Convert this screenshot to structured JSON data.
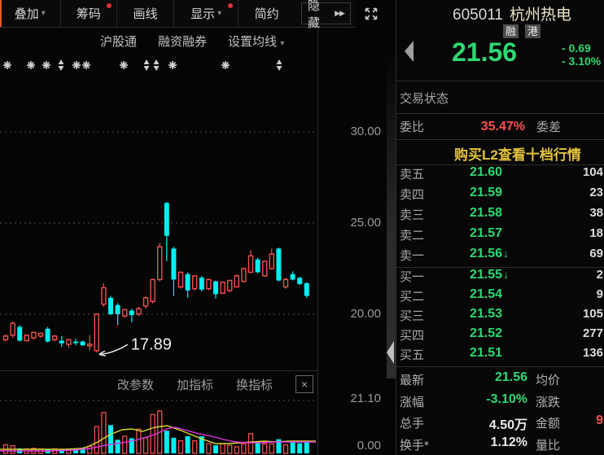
{
  "toolbar": {
    "buttons": [
      {
        "label": "叠加",
        "caret": true,
        "dot": false
      },
      {
        "label": "筹码",
        "caret": false,
        "dot": true
      },
      {
        "label": "画线",
        "caret": false,
        "dot": false
      },
      {
        "label": "显示",
        "caret": true,
        "dot": true
      },
      {
        "label": "简约",
        "caret": false,
        "dot": false
      },
      {
        "label": "隐藏",
        "caret": false,
        "dot": false,
        "chevrons": "▶▶"
      }
    ]
  },
  "subnav": {
    "items": [
      "沪股通",
      "融资融券",
      "设置均线"
    ]
  },
  "indicator_bar": {
    "items": [
      "改参数",
      "加指标",
      "换指标"
    ],
    "close_label": "×"
  },
  "quote_panel": {
    "code": "605011",
    "name": "杭州热电",
    "badges": [
      "融",
      "港"
    ],
    "price": "21.56",
    "change": "- 0.69",
    "change_pct": "- 3.10%",
    "status_label": "交易状态",
    "weibi_label": "委比",
    "weibi_value": "35.47%",
    "weicha_label": "委差",
    "l2_link": "购买L2查看十档行情",
    "asks": [
      {
        "label": "卖五",
        "price": "21.60",
        "vol": "104",
        "arrow": ""
      },
      {
        "label": "卖四",
        "price": "21.59",
        "vol": "23",
        "arrow": ""
      },
      {
        "label": "卖三",
        "price": "21.58",
        "vol": "38",
        "arrow": ""
      },
      {
        "label": "卖二",
        "price": "21.57",
        "vol": "18",
        "arrow": ""
      },
      {
        "label": "卖一",
        "price": "21.56",
        "vol": "69",
        "arrow": "↓"
      }
    ],
    "bids": [
      {
        "label": "买一",
        "price": "21.55",
        "vol": "2",
        "arrow": "↓"
      },
      {
        "label": "买二",
        "price": "21.54",
        "vol": "9",
        "arrow": ""
      },
      {
        "label": "买三",
        "price": "21.53",
        "vol": "105",
        "arrow": ""
      },
      {
        "label": "买四",
        "price": "21.52",
        "vol": "277",
        "arrow": ""
      },
      {
        "label": "买五",
        "price": "21.51",
        "vol": "136",
        "arrow": ""
      }
    ],
    "stats": [
      {
        "label": "最新",
        "value": "21.56",
        "vc": "green",
        "label2": "均价",
        "value2": "",
        "vc2": ""
      },
      {
        "label": "涨幅",
        "value": "-3.10%",
        "vc": "green",
        "label2": "涨跌",
        "value2": "",
        "vc2": ""
      },
      {
        "label": "总手",
        "value": "4.50万",
        "vc": "",
        "label2": "金额",
        "value2": "9",
        "vc2": "redtxt"
      },
      {
        "label": "换手*",
        "value": "1.12%",
        "vc": "",
        "label2": "量比",
        "value2": "",
        "vc2": ""
      }
    ]
  },
  "colors": {
    "up_red": "#f0504b",
    "down_cyan": "#00f0f0",
    "green_text": "#2fd873",
    "ma_yellow": "#d8d832",
    "ma_magenta": "#e236e2",
    "grid": "#4f4f4f",
    "marker": "#cfcfcf"
  },
  "chart_data": {
    "type": "candlestick+volume",
    "y_ticks": [
      "30.00",
      "25.00",
      "20.00"
    ],
    "grid_prices": [
      30,
      25,
      20
    ],
    "annotation": {
      "text": "17.89",
      "candle_index": 13,
      "price_low": 17.89
    },
    "vol_axis": {
      "top": "21.10",
      "bottom": "0.00"
    },
    "markers": {
      "star_x": [
        9,
        38,
        57,
        94,
        106,
        152,
        212,
        277
      ],
      "updown_x": [
        75,
        180,
        192,
        343
      ]
    },
    "candles": [
      [
        18.6,
        18.9,
        18.5,
        18.8
      ],
      [
        18.85,
        19.6,
        18.7,
        19.5
      ],
      [
        19.3,
        19.4,
        18.5,
        18.55
      ],
      [
        18.55,
        18.9,
        18.5,
        18.85
      ],
      [
        18.7,
        19.05,
        18.6,
        19.0
      ],
      [
        18.8,
        19.0,
        18.7,
        18.95
      ],
      [
        19.2,
        19.3,
        18.45,
        18.5
      ],
      [
        18.6,
        18.85,
        18.5,
        18.8
      ],
      [
        18.55,
        18.8,
        18.2,
        18.4
      ],
      [
        18.35,
        18.65,
        18.15,
        18.6
      ],
      [
        18.5,
        18.65,
        18.3,
        18.45
      ],
      [
        18.5,
        18.55,
        18.25,
        18.3
      ],
      [
        18.3,
        18.85,
        18.0,
        18.35
      ],
      [
        18.0,
        20.05,
        17.89,
        20.0
      ],
      [
        20.55,
        21.7,
        20.4,
        21.45
      ],
      [
        20.9,
        21.0,
        19.95,
        20.0
      ],
      [
        20.5,
        20.6,
        19.4,
        20.0
      ],
      [
        19.9,
        20.3,
        19.8,
        20.25
      ],
      [
        20.2,
        20.3,
        19.55,
        19.95
      ],
      [
        20.0,
        20.4,
        19.9,
        20.3
      ],
      [
        20.45,
        21.0,
        20.3,
        20.9
      ],
      [
        20.7,
        21.95,
        20.6,
        21.9
      ],
      [
        21.9,
        23.9,
        21.8,
        23.7
      ],
      [
        26.1,
        26.15,
        22.9,
        24.3
      ],
      [
        23.6,
        23.7,
        21.0,
        21.9
      ],
      [
        21.5,
        22.35,
        21.4,
        22.3
      ],
      [
        22.2,
        22.3,
        20.9,
        21.3
      ],
      [
        21.4,
        22.15,
        21.3,
        22.1
      ],
      [
        22.0,
        22.1,
        21.25,
        21.35
      ],
      [
        21.4,
        21.95,
        21.3,
        21.9
      ],
      [
        21.8,
        21.85,
        20.85,
        21.1
      ],
      [
        21.15,
        21.8,
        21.1,
        21.75
      ],
      [
        21.3,
        21.9,
        21.2,
        21.85
      ],
      [
        21.5,
        22.2,
        21.45,
        22.1
      ],
      [
        21.8,
        22.55,
        21.75,
        22.5
      ],
      [
        22.3,
        23.5,
        22.25,
        23.2
      ],
      [
        23.0,
        23.1,
        22.25,
        22.3
      ],
      [
        22.1,
        22.95,
        22.05,
        22.9
      ],
      [
        22.5,
        23.6,
        22.45,
        23.3
      ],
      [
        23.6,
        23.65,
        21.8,
        21.85
      ],
      [
        21.5,
        22.0,
        21.4,
        21.9
      ],
      [
        22.2,
        22.35,
        21.85,
        21.9
      ],
      [
        22.0,
        22.05,
        21.6,
        21.65
      ],
      [
        21.7,
        21.75,
        20.9,
        21.0
      ]
    ],
    "volume": [
      0.17,
      0.15,
      0.1,
      0.09,
      0.1,
      0.09,
      0.09,
      0.09,
      0.08,
      0.08,
      0.08,
      0.11,
      0.14,
      0.53,
      0.81,
      0.56,
      0.27,
      0.34,
      0.3,
      0.48,
      0.31,
      0.77,
      0.84,
      0.45,
      0.31,
      0.25,
      0.34,
      0.25,
      0.34,
      0.19,
      0.16,
      0.19,
      0.16,
      0.13,
      0.19,
      0.39,
      0.23,
      0.19,
      0.19,
      0.28,
      0.17,
      0.23,
      0.2,
      0.23
    ],
    "vol_ma": {
      "yellow": [
        [
          0,
          62
        ],
        [
          40,
          62
        ],
        [
          80,
          62
        ],
        [
          100,
          61
        ],
        [
          110,
          58
        ],
        [
          120,
          53
        ],
        [
          135,
          44
        ],
        [
          150,
          38
        ],
        [
          162,
          37
        ],
        [
          175,
          40
        ],
        [
          190,
          35
        ],
        [
          205,
          33
        ],
        [
          220,
          38
        ],
        [
          235,
          44
        ],
        [
          250,
          50
        ],
        [
          265,
          55
        ],
        [
          280,
          55
        ],
        [
          295,
          54
        ],
        [
          310,
          53
        ],
        [
          325,
          52
        ],
        [
          340,
          53
        ],
        [
          355,
          52
        ],
        [
          370,
          52
        ],
        [
          388,
          52
        ]
      ],
      "magenta": [
        [
          0,
          64
        ],
        [
          60,
          64
        ],
        [
          90,
          63
        ],
        [
          110,
          61
        ],
        [
          130,
          57
        ],
        [
          150,
          54
        ],
        [
          170,
          50
        ],
        [
          190,
          44
        ],
        [
          205,
          37
        ],
        [
          215,
          35
        ],
        [
          230,
          39
        ],
        [
          245,
          43
        ],
        [
          260,
          46
        ],
        [
          275,
          50
        ],
        [
          290,
          53
        ],
        [
          305,
          54
        ],
        [
          320,
          54
        ],
        [
          335,
          53
        ],
        [
          350,
          53
        ],
        [
          370,
          53
        ],
        [
          388,
          53
        ]
      ]
    }
  }
}
